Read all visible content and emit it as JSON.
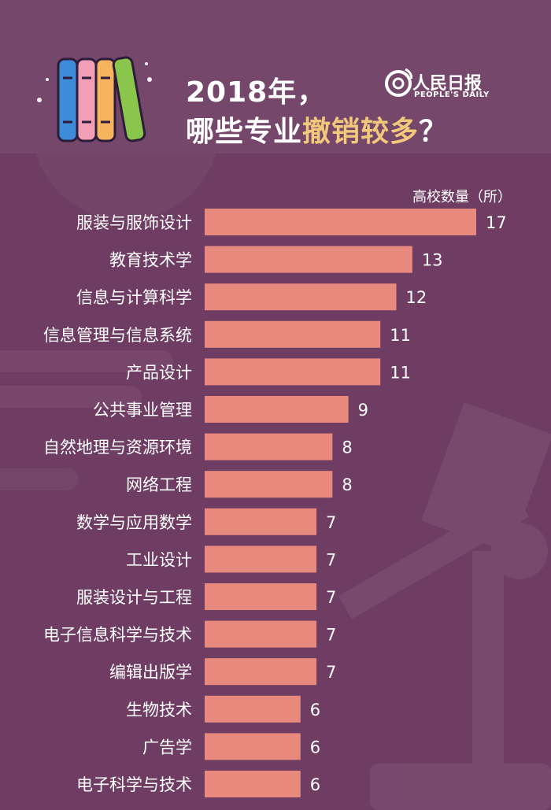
{
  "title": {
    "line1": "2018年，",
    "line2_prefix": "哪些专业",
    "line2_highlight": "撤销较多",
    "line2_suffix": "？"
  },
  "logo": {
    "main": "人民日报",
    "sub": "PEOPLE'S DAILY"
  },
  "colors": {
    "background": "#6f3d63",
    "bar": "#e8897e",
    "text": "#ffffff",
    "highlight": "#f2c97a"
  },
  "chart_data": {
    "type": "bar",
    "orientation": "horizontal",
    "unit_label": "高校数量（所）",
    "categories": [
      "服装与服饰设计",
      "教育技术学",
      "信息与计算科学",
      "信息管理与信息系统",
      "产品设计",
      "公共事业管理",
      "自然地理与资源环境",
      "网络工程",
      "数学与应用数学",
      "工业设计",
      "服装设计与工程",
      "电子信息科学与技术",
      "编辑出版学",
      "生物技术",
      "广告学",
      "电子科学与技术"
    ],
    "values": [
      17,
      13,
      12,
      11,
      11,
      9,
      8,
      8,
      7,
      7,
      7,
      7,
      7,
      6,
      6,
      6
    ],
    "xlim": [
      0,
      17
    ],
    "grid": false
  }
}
